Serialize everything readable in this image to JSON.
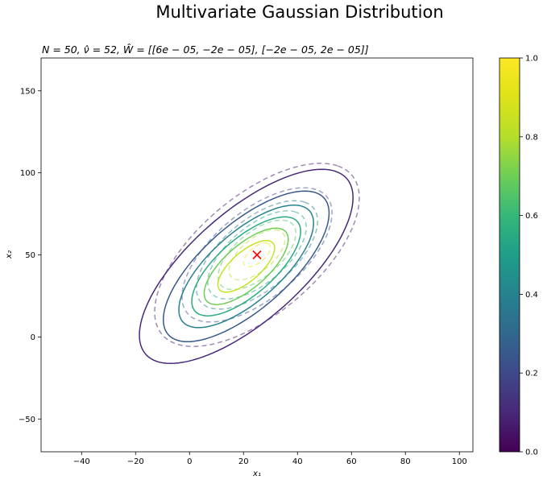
{
  "chart_data": {
    "type": "contour",
    "suptitle": "Multivariate Gaussian Distribution",
    "title": "N = 50, ν̂ = 52, Ŵ = [[6e − 05, −2e − 05], [−2e − 05, 2e − 05]]",
    "xlabel": "x₁",
    "ylabel": "x₂",
    "xlim": [
      -55,
      105
    ],
    "ylim": [
      -70,
      170
    ],
    "xticks": [
      -40,
      -20,
      0,
      20,
      40,
      60,
      80,
      100
    ],
    "yticks": [
      -50,
      0,
      50,
      100,
      150
    ],
    "grid": false,
    "colormap": "viridis",
    "colorbar": {
      "min": 0.0,
      "max": 1.0,
      "ticks": [
        "0.0",
        "0.2",
        "0.4",
        "0.6",
        "0.8",
        "1.0"
      ]
    },
    "solid_contours": {
      "center": [
        21,
        43
      ],
      "cov": [
        [
          340,
          360
        ],
        [
          360,
          760
        ]
      ],
      "levels": [
        0.1,
        0.25,
        0.4,
        0.55,
        0.7,
        0.85
      ]
    },
    "dashed_contours": {
      "center": [
        25,
        50
      ],
      "cov": [
        [
          240,
          220
        ],
        [
          220,
          520
        ]
      ],
      "levels": [
        0.05,
        0.2,
        0.35,
        0.5,
        0.65,
        0.8,
        0.95
      ],
      "alpha": 0.5
    },
    "marker": {
      "x": 25,
      "y": 50,
      "symbol": "x",
      "color": "#ff0000"
    }
  }
}
